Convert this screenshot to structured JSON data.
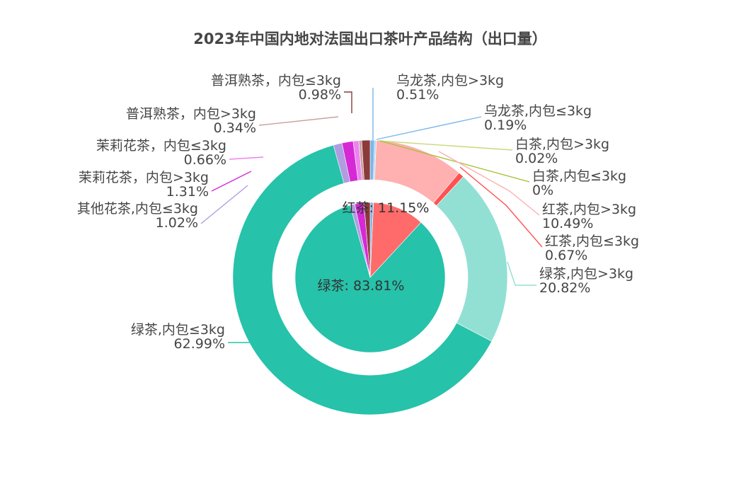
{
  "chart_data": {
    "type": "pie",
    "title": "2023年中国内地对法国出口茶叶产品结构（出口量）",
    "inner_ring": [
      {
        "name": "乌龙茶",
        "value": 0.7,
        "color": "#7cb7e8"
      },
      {
        "name": "白茶",
        "value": 0.02,
        "color": "#a8c13d"
      },
      {
        "name": "红茶",
        "value": 11.15,
        "color": "#ff6b6b",
        "label": "红茶: 11.15%"
      },
      {
        "name": "绿茶",
        "value": 83.81,
        "color": "#26c2aa",
        "label": "绿茶: 83.81%"
      },
      {
        "name": "其他花茶",
        "value": 1.02,
        "color": "#b09ce0"
      },
      {
        "name": "茉莉花茶",
        "value": 1.97,
        "color": "#d629d6"
      },
      {
        "name": "普洱熟茶",
        "value": 1.32,
        "color": "#8b3a3a"
      }
    ],
    "outer_ring": [
      {
        "line1": "乌龙茶,内包>3kg",
        "line2": "0.51%",
        "value": 0.51,
        "color": "#7cb7e8",
        "lineColor": "#7cb7e8"
      },
      {
        "line1": "乌龙茶,内包≤3kg",
        "line2": "0.19%",
        "value": 0.19,
        "color": "#a9d0f5",
        "lineColor": "#7cb7e8"
      },
      {
        "line1": "白茶,内包>3kg",
        "line2": "0.02%",
        "value": 0.02,
        "color": "#d4e58a",
        "lineColor": "#c8da7a"
      },
      {
        "line1": "白茶,内包≤3kg",
        "line2": "0%",
        "value": 0.0,
        "color": "#a8c13d",
        "lineColor": "#a8c13d"
      },
      {
        "line1": "红茶,内包>3kg",
        "line2": "10.49%",
        "value": 10.49,
        "color": "#ffb0b0",
        "lineColor": "#ffb0b0"
      },
      {
        "line1": "红茶,内包≤3kg",
        "line2": "0.67%",
        "value": 0.67,
        "color": "#ff5252",
        "lineColor": "#ff5252"
      },
      {
        "line1": "绿茶,内包>3kg",
        "line2": "20.82%",
        "value": 20.82,
        "color": "#92e0d3",
        "lineColor": "#92e0d3"
      },
      {
        "line1": "绿茶,内包≤3kg",
        "line2": "62.99%",
        "value": 62.99,
        "color": "#26c2aa",
        "lineColor": "#26c2aa"
      },
      {
        "line1": "其他花茶,内包≤3kg",
        "line2": "1.02%",
        "value": 1.02,
        "color": "#b09ce0",
        "lineColor": "#b09ce0"
      },
      {
        "line1": "茉莉花茶，内包>3kg",
        "line2": "1.31%",
        "value": 1.31,
        "color": "#d629d6",
        "lineColor": "#d629d6"
      },
      {
        "line1": "茉莉花茶，内包≤3kg",
        "line2": "0.66%",
        "value": 0.66,
        "color": "#ee82ee",
        "lineColor": "#ee82ee"
      },
      {
        "line1": "普洱熟茶，内包>3kg",
        "line2": "0.34%",
        "value": 0.34,
        "color": "#c8a0a0",
        "lineColor": "#c8a0a0"
      },
      {
        "line1": "普洱熟茶，内包≤3kg",
        "line2": "0.98%",
        "value": 0.98,
        "color": "#8b3a3a",
        "lineColor": "#8b3a3a"
      }
    ]
  }
}
